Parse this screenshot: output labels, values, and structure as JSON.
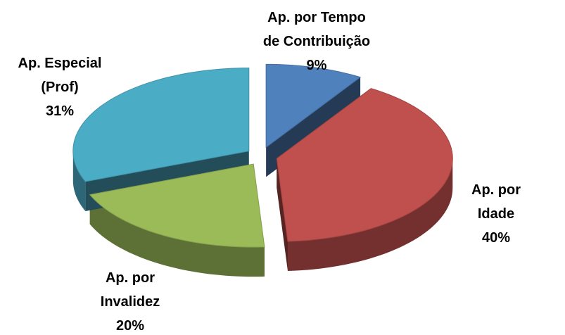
{
  "chart_data": {
    "type": "pie3d",
    "categories": [
      "Ap. por Tempo\nde Contribuição",
      "Ap. por Idade",
      "Ap. por\nInvalidez",
      "Ap. Especial\n(Prof)"
    ],
    "values": [
      9,
      40,
      20,
      31
    ],
    "value_labels": [
      "9%",
      "40%",
      "20%",
      "31%"
    ],
    "colors": [
      "#4f81bd",
      "#c0504d",
      "#9bbb59",
      "#4bacc6"
    ]
  }
}
